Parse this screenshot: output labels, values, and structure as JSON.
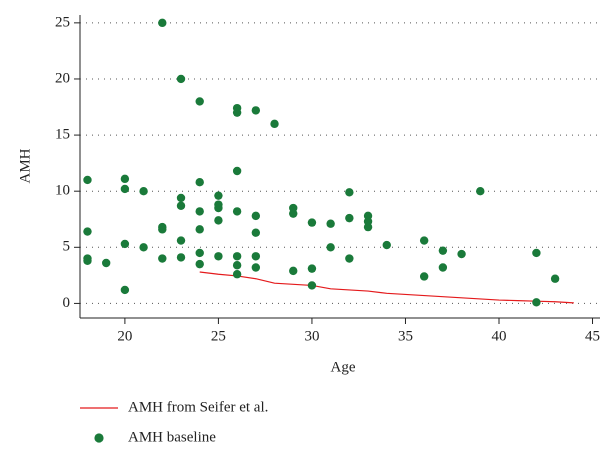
{
  "chart_data": {
    "type": "scatter",
    "x_label": "Age",
    "y_label": "AMH",
    "xlim": [
      17.6,
      45.4
    ],
    "ylim": [
      -1.3,
      25.7
    ],
    "xticks": [
      20,
      25,
      30,
      35,
      40,
      45
    ],
    "yticks": [
      0,
      5,
      10,
      15,
      20,
      25
    ],
    "grid": true,
    "legend": "bottom",
    "series": [
      {
        "name": "AMH from Seifer et al.",
        "color": "#e41a1c",
        "type": "line",
        "x": [
          24,
          25,
          26,
          27,
          28,
          29,
          30,
          31,
          32,
          33,
          34,
          35,
          36,
          37,
          38,
          39,
          40,
          41,
          42,
          43,
          44
        ],
        "values": [
          2.8,
          2.6,
          2.45,
          2.2,
          1.8,
          1.7,
          1.6,
          1.3,
          1.2,
          1.1,
          0.9,
          0.8,
          0.7,
          0.6,
          0.5,
          0.4,
          0.3,
          0.25,
          0.2,
          0.15,
          0.05
        ]
      },
      {
        "name": "AMH baseline",
        "color": "#1a7a3a",
        "type": "scatter",
        "x": [
          18,
          18,
          18,
          18,
          19,
          20,
          20,
          20,
          20,
          21,
          21,
          22,
          22,
          22,
          22,
          23,
          23,
          23,
          23,
          23,
          24,
          24,
          24,
          24,
          24,
          24,
          25,
          25,
          25,
          25,
          25,
          26,
          26,
          26,
          26,
          26,
          26,
          26,
          27,
          27,
          27,
          27,
          27,
          28,
          29,
          29,
          29,
          30,
          30,
          30,
          31,
          31,
          32,
          32,
          32,
          33,
          33,
          33,
          34,
          36,
          36,
          37,
          37,
          38,
          39,
          42,
          42,
          43
        ],
        "values": [
          11,
          6.4,
          4.0,
          3.8,
          3.6,
          11.1,
          10.2,
          5.3,
          1.2,
          10,
          5,
          25,
          6.8,
          6.6,
          4.0,
          20,
          9.4,
          8.7,
          5.6,
          4.1,
          18,
          10.8,
          8.2,
          6.6,
          4.5,
          3.5,
          9.6,
          8.8,
          8.5,
          7.4,
          4.2,
          17.4,
          17.0,
          11.8,
          8.2,
          4.2,
          3.4,
          2.6,
          17.2,
          7.8,
          6.3,
          4.2,
          3.2,
          16,
          8.5,
          8.0,
          2.9,
          7.2,
          3.1,
          1.6,
          7.1,
          5.0,
          9.9,
          7.6,
          4.0,
          7.8,
          7.3,
          6.8,
          5.2,
          5.6,
          2.4,
          4.7,
          3.2,
          4.4,
          10,
          4.5,
          0.1,
          2.2
        ]
      }
    ]
  }
}
